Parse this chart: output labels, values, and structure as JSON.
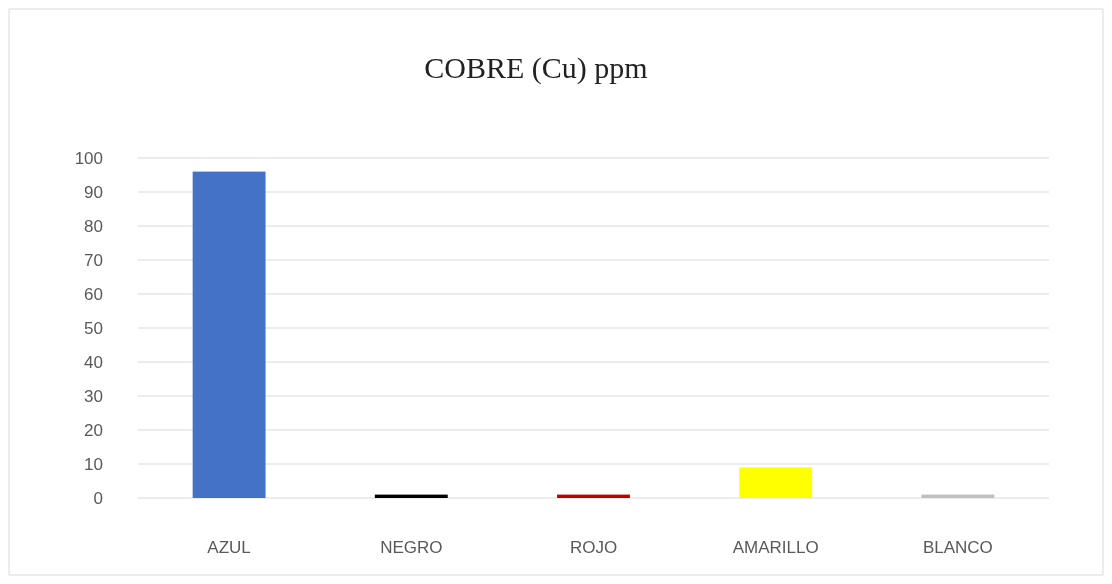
{
  "chart_data": {
    "type": "bar",
    "title": "COBRE (Cu) ppm",
    "categories": [
      "AZUL",
      "NEGRO",
      "ROJO",
      "AMARILLO",
      "BLANCO"
    ],
    "values": [
      96,
      1,
      1,
      9,
      1
    ],
    "colors": [
      "#4472c4",
      "#000000",
      "#c00000",
      "#ffff00",
      "#bfbfbf"
    ],
    "ylim": [
      0,
      100
    ],
    "yticks": [
      0,
      10,
      20,
      30,
      40,
      50,
      60,
      70,
      80,
      90,
      100
    ],
    "grid": "y"
  }
}
